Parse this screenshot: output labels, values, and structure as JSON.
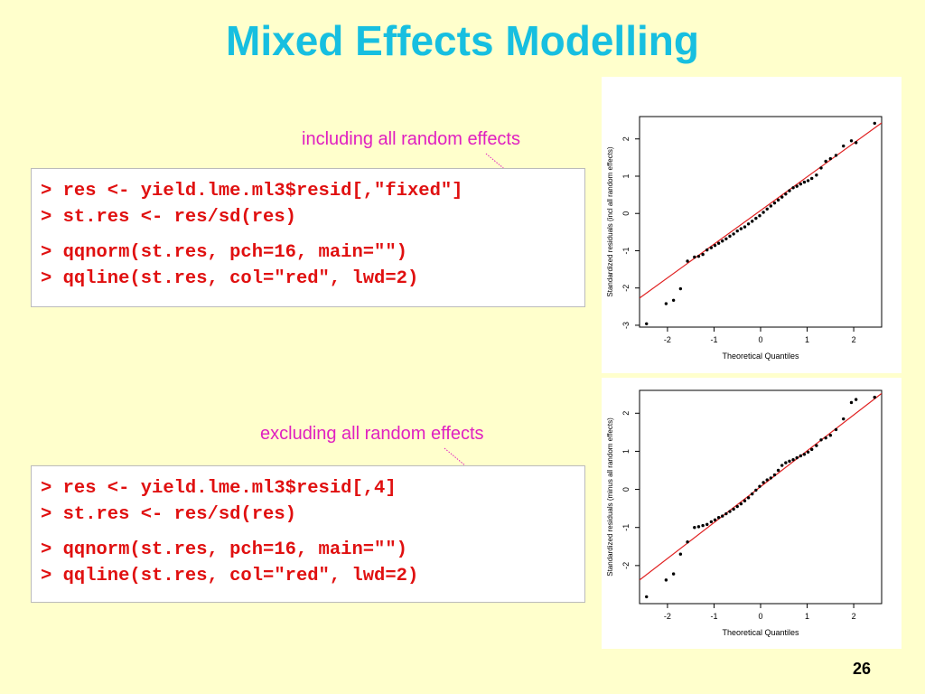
{
  "slide": {
    "title": "Mixed Effects Modelling",
    "page_number": "26"
  },
  "block1": {
    "annotation": "including all random effects",
    "code": [
      "> res <- yield.lme.ml3$resid[,\"fixed\"]",
      "> st.res <- res/sd(res)",
      "> qqnorm(st.res, pch=16, main=\"\")",
      "> qqline(st.res, col=\"red\", lwd=2)"
    ]
  },
  "block2": {
    "annotation": "excluding all random effects",
    "code": [
      "> res <- yield.lme.ml3$resid[,4]",
      "> st.res <- res/sd(res)",
      "> qqnorm(st.res, pch=16, main=\"\")",
      "> qqline(st.res, col=\"red\", lwd=2)"
    ]
  },
  "colors": {
    "title": "#17BFE0",
    "annotation": "#E020C0",
    "code": "#E01010",
    "background": "#FFFFCC",
    "qqline": "#E02020"
  },
  "chart_data": [
    {
      "type": "scatter",
      "xlabel": "Theoretical Quantiles",
      "ylabel": "Standardized residuals (incl all random effects)",
      "xlim": [
        -2.6,
        2.6
      ],
      "ylim": [
        -3.05,
        2.6
      ],
      "x_ticks": [
        "-2",
        "-1",
        "0",
        "1",
        "2"
      ],
      "y_ticks": [
        "-3",
        "-2",
        "-1",
        "0",
        "1",
        "2"
      ],
      "qqline": {
        "x": [
          -2.6,
          2.6
        ],
        "y": [
          -2.27,
          2.43
        ]
      },
      "points": {
        "x": [
          -2.45,
          -2.03,
          -1.87,
          -1.72,
          -1.57,
          -1.42,
          -1.33,
          -1.24,
          -1.15,
          -1.06,
          -0.98,
          -0.9,
          -0.82,
          -0.74,
          -0.66,
          -0.58,
          -0.5,
          -0.42,
          -0.34,
          -0.26,
          -0.18,
          -0.1,
          -0.02,
          0.06,
          0.14,
          0.22,
          0.3,
          0.38,
          0.46,
          0.54,
          0.62,
          0.7,
          0.78,
          0.86,
          0.94,
          1.02,
          1.1,
          1.2,
          1.3,
          1.4,
          1.5,
          1.62,
          1.78,
          1.95,
          2.05,
          2.45
        ],
        "y": [
          -2.96,
          -2.42,
          -2.33,
          -2.02,
          -1.28,
          -1.17,
          -1.15,
          -1.1,
          -0.98,
          -0.92,
          -0.86,
          -0.8,
          -0.74,
          -0.68,
          -0.61,
          -0.55,
          -0.47,
          -0.41,
          -0.36,
          -0.28,
          -0.21,
          -0.13,
          -0.06,
          0.03,
          0.12,
          0.2,
          0.28,
          0.36,
          0.44,
          0.52,
          0.61,
          0.69,
          0.73,
          0.79,
          0.84,
          0.88,
          0.94,
          1.03,
          1.22,
          1.4,
          1.47,
          1.56,
          1.81,
          1.95,
          1.9,
          2.42
        ]
      }
    },
    {
      "type": "scatter",
      "xlabel": "Theoretical Quantiles",
      "ylabel": "Standardized residuals (minus all random effects)",
      "xlim": [
        -2.6,
        2.6
      ],
      "ylim": [
        -3.0,
        2.6
      ],
      "x_ticks": [
        "-2",
        "-1",
        "0",
        "1",
        "2"
      ],
      "y_ticks": [
        "-2",
        "-1",
        "0",
        "1",
        "2"
      ],
      "qqline": {
        "x": [
          -2.6,
          2.6
        ],
        "y": [
          -2.38,
          2.52
        ]
      },
      "points": {
        "x": [
          -2.45,
          -2.03,
          -1.87,
          -1.72,
          -1.57,
          -1.42,
          -1.33,
          -1.24,
          -1.15,
          -1.06,
          -0.98,
          -0.9,
          -0.82,
          -0.74,
          -0.66,
          -0.58,
          -0.5,
          -0.42,
          -0.34,
          -0.26,
          -0.18,
          -0.1,
          -0.02,
          0.06,
          0.14,
          0.22,
          0.3,
          0.38,
          0.46,
          0.54,
          0.62,
          0.7,
          0.78,
          0.86,
          0.94,
          1.02,
          1.1,
          1.2,
          1.3,
          1.4,
          1.5,
          1.62,
          1.78,
          1.95,
          2.05,
          2.45
        ],
        "y": [
          -2.82,
          -2.38,
          -2.22,
          -1.7,
          -1.38,
          -1.0,
          -0.98,
          -0.95,
          -0.92,
          -0.85,
          -0.8,
          -0.74,
          -0.7,
          -0.64,
          -0.58,
          -0.52,
          -0.45,
          -0.38,
          -0.3,
          -0.22,
          -0.12,
          -0.02,
          0.08,
          0.18,
          0.25,
          0.3,
          0.38,
          0.5,
          0.63,
          0.7,
          0.74,
          0.78,
          0.83,
          0.88,
          0.92,
          0.98,
          1.05,
          1.15,
          1.3,
          1.35,
          1.42,
          1.57,
          1.85,
          2.28,
          2.36,
          2.42
        ]
      }
    }
  ]
}
